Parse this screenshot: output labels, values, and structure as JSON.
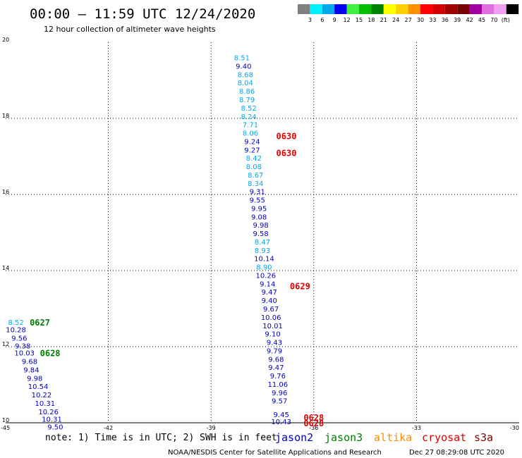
{
  "header": {
    "title": "00:00 – 11:59 UTC 12/24/2020",
    "subtitle": "12 hour collection of altimeter wave heights"
  },
  "colorbar": {
    "colors": [
      "#808080",
      "#00f0ff",
      "#00a8f0",
      "#0000f0",
      "#40f040",
      "#00c000",
      "#008000",
      "#ffff00",
      "#ffd000",
      "#ff9000",
      "#ff0000",
      "#d00000",
      "#a00000",
      "#780000",
      "#a000a0",
      "#e070e0",
      "#f0a0f0",
      "#000000"
    ],
    "labels": [
      "3",
      "6",
      "9",
      "12",
      "15",
      "18",
      "21",
      "24",
      "27",
      "30",
      "33",
      "36",
      "39",
      "42",
      "45",
      "70"
    ],
    "unit": "(ft)"
  },
  "footer": {
    "note": "note: 1) Time is in UTC; 2) SWH is in feet",
    "satellites": [
      {
        "name": "jason2",
        "color": "#0000c0"
      },
      {
        "name": "jason3",
        "color": "#008000"
      },
      {
        "name": "altika",
        "color": "#ff8c00"
      },
      {
        "name": "cryosat",
        "color": "#e00000"
      },
      {
        "name": "s3a",
        "color": "#800000"
      }
    ],
    "credit": "NOAA/NESDIS Center for Satellite Applications and Research",
    "timestamp": "Dec 27 08:29:08 UTC 2020"
  },
  "chart_data": {
    "type": "scatter",
    "xlim": [
      -45,
      -30
    ],
    "ylim": [
      10,
      20
    ],
    "x_ticks": [
      "-45",
      "-42",
      "-39",
      "-36",
      "-33",
      "-30"
    ],
    "y_ticks": [
      "10",
      "12",
      "14",
      "16",
      "18",
      "20"
    ],
    "grid": true,
    "series": [
      {
        "satellite": "jason3",
        "color": "#008000",
        "pass_labels": [
          {
            "text": "0627",
            "x": -44.0,
            "y": 12.65
          },
          {
            "text": "0628",
            "x": -43.7,
            "y": 11.84
          }
        ],
        "points": [
          {
            "x": -44.7,
            "y": 12.65,
            "value": "8.52",
            "color": "#00a8f0"
          },
          {
            "x": -44.7,
            "y": 12.45,
            "value": "10.28",
            "color": "#0000c0"
          },
          {
            "x": -44.6,
            "y": 12.23,
            "value": "9.56",
            "color": "#0000c0"
          },
          {
            "x": -44.5,
            "y": 12.03,
            "value": "9.38",
            "color": "#0000c0"
          },
          {
            "x": -44.45,
            "y": 11.84,
            "value": "10.03",
            "color": "#0000c0"
          },
          {
            "x": -44.3,
            "y": 11.62,
            "value": "9.68",
            "color": "#0000c0"
          },
          {
            "x": -44.25,
            "y": 11.4,
            "value": "9.84",
            "color": "#0000c0"
          },
          {
            "x": -44.15,
            "y": 11.18,
            "value": "9.98",
            "color": "#0000c0"
          },
          {
            "x": -44.05,
            "y": 10.96,
            "value": "10.54",
            "color": "#0000c0"
          },
          {
            "x": -43.95,
            "y": 10.74,
            "value": "10.22",
            "color": "#0000c0"
          },
          {
            "x": -43.85,
            "y": 10.52,
            "value": "10.31",
            "color": "#0000c0"
          },
          {
            "x": -43.75,
            "y": 10.3,
            "value": "10.26",
            "color": "#0000c0"
          },
          {
            "x": -43.65,
            "y": 10.1,
            "value": "10.31",
            "color": "#0000c0"
          },
          {
            "x": -43.55,
            "y": 9.9,
            "value": "9.50",
            "color": "#0000c0"
          }
        ]
      },
      {
        "satellite": "cryosat",
        "color": "#e00000",
        "pass_labels": [
          {
            "text": "0630",
            "x": -36.8,
            "y": 17.55
          },
          {
            "text": "0630",
            "x": -36.8,
            "y": 17.1
          },
          {
            "text": "0629",
            "x": -36.4,
            "y": 13.6
          },
          {
            "text": "0628",
            "x": -36.0,
            "y": 10.15
          },
          {
            "text": "0628",
            "x": -36.0,
            "y": 10.0
          }
        ],
        "points": [
          {
            "x": -38.1,
            "y": 19.6,
            "value": "8.51",
            "color": "#00a8f0"
          },
          {
            "x": -38.05,
            "y": 19.38,
            "value": "9.40",
            "color": "#0000c0"
          },
          {
            "x": -38.0,
            "y": 19.16,
            "value": "8.68",
            "color": "#00a8f0"
          },
          {
            "x": -38.0,
            "y": 18.94,
            "value": "8.04",
            "color": "#00a8f0"
          },
          {
            "x": -37.95,
            "y": 18.72,
            "value": "8.86",
            "color": "#00a8f0"
          },
          {
            "x": -37.95,
            "y": 18.5,
            "value": "8.79",
            "color": "#00a8f0"
          },
          {
            "x": -37.9,
            "y": 18.28,
            "value": "8.52",
            "color": "#00a8f0"
          },
          {
            "x": -37.9,
            "y": 18.06,
            "value": "8.24",
            "color": "#00a8f0"
          },
          {
            "x": -37.85,
            "y": 17.84,
            "value": "7.71",
            "color": "#00a8f0"
          },
          {
            "x": -37.85,
            "y": 17.62,
            "value": "8.06",
            "color": "#00a8f0"
          },
          {
            "x": -37.8,
            "y": 17.4,
            "value": "9.24",
            "color": "#0000c0"
          },
          {
            "x": -37.8,
            "y": 17.18,
            "value": "9.27",
            "color": "#0000c0"
          },
          {
            "x": -37.75,
            "y": 16.96,
            "value": "8.42",
            "color": "#00a8f0"
          },
          {
            "x": -37.75,
            "y": 16.74,
            "value": "8.08",
            "color": "#00a8f0"
          },
          {
            "x": -37.7,
            "y": 16.52,
            "value": "8.67",
            "color": "#00a8f0"
          },
          {
            "x": -37.7,
            "y": 16.3,
            "value": "8.34",
            "color": "#00a8f0"
          },
          {
            "x": -37.65,
            "y": 16.08,
            "value": "9.31",
            "color": "#0000c0"
          },
          {
            "x": -37.65,
            "y": 15.86,
            "value": "9.55",
            "color": "#0000c0"
          },
          {
            "x": -37.6,
            "y": 15.64,
            "value": "9.95",
            "color": "#0000c0"
          },
          {
            "x": -37.6,
            "y": 15.42,
            "value": "9.08",
            "color": "#0000c0"
          },
          {
            "x": -37.55,
            "y": 15.2,
            "value": "9.98",
            "color": "#0000c0"
          },
          {
            "x": -37.55,
            "y": 14.98,
            "value": "9.58",
            "color": "#0000c0"
          },
          {
            "x": -37.5,
            "y": 14.76,
            "value": "8.47",
            "color": "#00a8f0"
          },
          {
            "x": -37.5,
            "y": 14.54,
            "value": "8.93",
            "color": "#00a8f0"
          },
          {
            "x": -37.45,
            "y": 14.32,
            "value": "10.14",
            "color": "#0000c0"
          },
          {
            "x": -37.45,
            "y": 14.1,
            "value": "8.90",
            "color": "#00a8f0"
          },
          {
            "x": -37.4,
            "y": 13.88,
            "value": "10.26",
            "color": "#0000c0"
          },
          {
            "x": -37.35,
            "y": 13.66,
            "value": "9.14",
            "color": "#0000c0"
          },
          {
            "x": -37.3,
            "y": 13.44,
            "value": "9.47",
            "color": "#0000c0"
          },
          {
            "x": -37.3,
            "y": 13.22,
            "value": "9.40",
            "color": "#0000c0"
          },
          {
            "x": -37.25,
            "y": 13.0,
            "value": "9.67",
            "color": "#0000c0"
          },
          {
            "x": -37.25,
            "y": 12.78,
            "value": "10.06",
            "color": "#0000c0"
          },
          {
            "x": -37.2,
            "y": 12.56,
            "value": "10.01",
            "color": "#0000c0"
          },
          {
            "x": -37.2,
            "y": 12.34,
            "value": "9.10",
            "color": "#0000c0"
          },
          {
            "x": -37.15,
            "y": 12.12,
            "value": "9.43",
            "color": "#0000c0"
          },
          {
            "x": -37.15,
            "y": 11.9,
            "value": "9.79",
            "color": "#0000c0"
          },
          {
            "x": -37.1,
            "y": 11.68,
            "value": "9.68",
            "color": "#0000c0"
          },
          {
            "x": -37.1,
            "y": 11.46,
            "value": "9.47",
            "color": "#0000c0"
          },
          {
            "x": -37.05,
            "y": 11.24,
            "value": "9.76",
            "color": "#0000c0"
          },
          {
            "x": -37.05,
            "y": 11.02,
            "value": "11.06",
            "color": "#0000c0"
          },
          {
            "x": -37.0,
            "y": 10.8,
            "value": "9.96",
            "color": "#0000c0"
          },
          {
            "x": -37.0,
            "y": 10.58,
            "value": "9.57",
            "color": "#0000c0"
          },
          {
            "x": -36.95,
            "y": 10.22,
            "value": "9.45",
            "color": "#0000c0"
          },
          {
            "x": -36.95,
            "y": 10.04,
            "value": "10.43",
            "color": "#0000c0"
          }
        ]
      }
    ]
  }
}
